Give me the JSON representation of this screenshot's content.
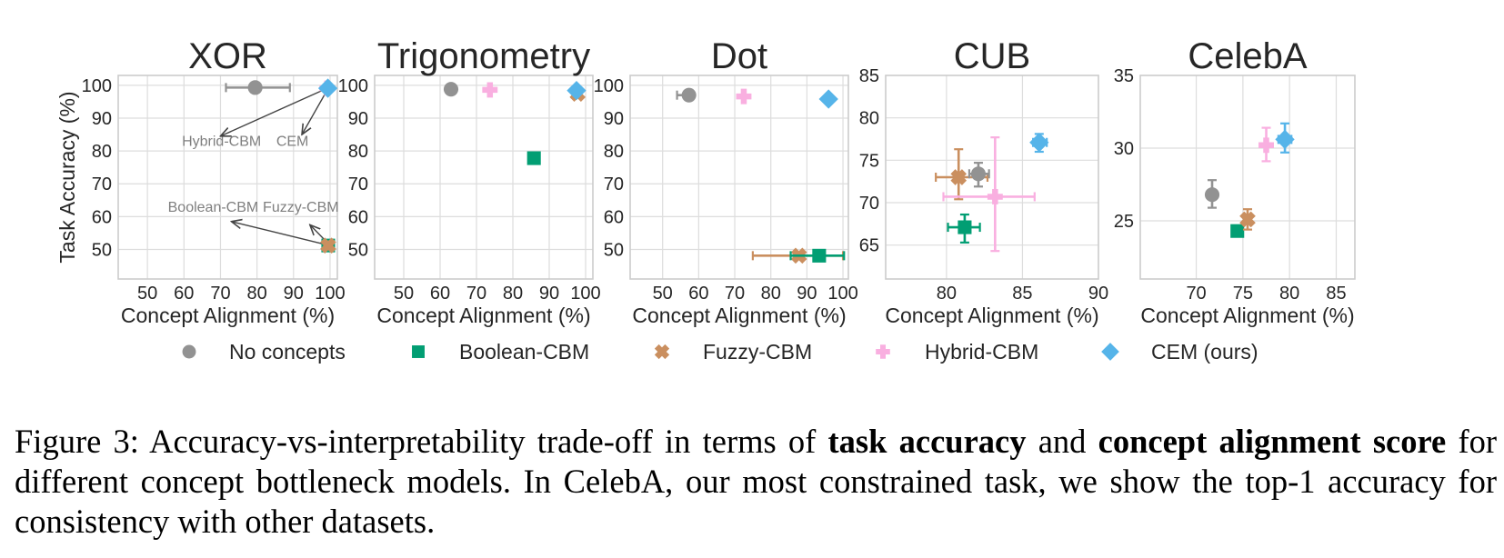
{
  "chart_data": [
    {
      "type": "scatter",
      "title": "XOR",
      "xlabel": "Concept Alignment (%)",
      "ylabel": "Task Accuracy (%)",
      "xlim": [
        42,
        102
      ],
      "ylim": [
        41,
        103
      ],
      "xticks": [
        50,
        60,
        70,
        80,
        90,
        100
      ],
      "yticks": [
        50,
        60,
        70,
        80,
        90,
        100
      ],
      "grid": true,
      "points": [
        {
          "series": "No concepts",
          "x": 79.5,
          "y": 99.3,
          "xerr": [
            71.5,
            89.0
          ],
          "yerr": null
        },
        {
          "series": "Hybrid-CBM",
          "x": 99.2,
          "y": 99.1,
          "xerr": null,
          "yerr": null
        },
        {
          "series": "CEM (ours)",
          "x": 99.4,
          "y": 99.1,
          "xerr": null,
          "yerr": null
        },
        {
          "series": "Boolean-CBM",
          "x": 99.5,
          "y": 51.2,
          "xerr": null,
          "yerr": null
        },
        {
          "series": "Fuzzy-CBM",
          "x": 99.5,
          "y": 51.2,
          "xerr": null,
          "yerr": null
        }
      ],
      "annotations": [
        {
          "text": "Hybrid-CBM",
          "x": 70.3,
          "y": 81.5,
          "arrow_from": [
            99.2,
            99.1
          ],
          "arrow_to": [
            70.0,
            84.5
          ]
        },
        {
          "text": "CEM",
          "x": 89.7,
          "y": 81.5,
          "arrow_from": [
            99.2,
            98.5
          ],
          "arrow_to": [
            92.3,
            85.0
          ]
        },
        {
          "text": "Boolean-CBM",
          "x": 68.0,
          "y": 61.5,
          "arrow_from": [
            99.5,
            51.3
          ],
          "arrow_to": [
            73.0,
            58.5
          ]
        },
        {
          "text": "Fuzzy-CBM",
          "x": 92.0,
          "y": 61.5,
          "arrow_from": [
            99.5,
            51.8
          ],
          "arrow_to": [
            94.5,
            57.5
          ]
        }
      ]
    },
    {
      "type": "scatter",
      "title": "Trigonometry",
      "xlabel": "Concept Alignment (%)",
      "ylabel": "",
      "xlim": [
        42,
        102
      ],
      "ylim": [
        41,
        103
      ],
      "xticks": [
        50,
        60,
        70,
        80,
        90,
        100
      ],
      "yticks": [
        50,
        60,
        70,
        80,
        90,
        100
      ],
      "grid": true,
      "points": [
        {
          "series": "No concepts",
          "x": 63.0,
          "y": 98.8,
          "xerr": null,
          "yerr": null
        },
        {
          "series": "Hybrid-CBM",
          "x": 73.7,
          "y": 98.6,
          "xerr": null,
          "yerr": null
        },
        {
          "series": "Boolean-CBM",
          "x": 85.8,
          "y": 77.8,
          "xerr": null,
          "yerr": null
        },
        {
          "series": "Fuzzy-CBM",
          "x": 97.8,
          "y": 97.4,
          "xerr": null,
          "yerr": null
        },
        {
          "series": "CEM (ours)",
          "x": 97.5,
          "y": 98.4,
          "xerr": null,
          "yerr": null
        }
      ],
      "annotations": []
    },
    {
      "type": "scatter",
      "title": "Dot",
      "xlabel": "Concept Alignment (%)",
      "ylabel": "",
      "xlim": [
        41,
        101.5
      ],
      "ylim": [
        41,
        103
      ],
      "xticks": [
        50,
        60,
        70,
        80,
        90,
        100
      ],
      "yticks": [
        50,
        60,
        70,
        80,
        90,
        100
      ],
      "grid": true,
      "points": [
        {
          "series": "No concepts",
          "x": 57.3,
          "y": 97.0,
          "xerr": [
            54.0,
            58.5
          ],
          "yerr": null
        },
        {
          "series": "Hybrid-CBM",
          "x": 72.5,
          "y": 96.6,
          "xerr": null,
          "yerr": null
        },
        {
          "series": "CEM (ours)",
          "x": 96.0,
          "y": 95.8,
          "xerr": null,
          "yerr": null
        },
        {
          "series": "Fuzzy-CBM",
          "x": 87.8,
          "y": 48.1,
          "xerr": [
            75.0,
            100.0
          ],
          "yerr": null
        },
        {
          "series": "Boolean-CBM",
          "x": 93.4,
          "y": 48.1,
          "xerr": [
            85.5,
            100.3
          ],
          "yerr": null
        }
      ],
      "annotations": []
    },
    {
      "type": "scatter",
      "title": "CUB",
      "xlabel": "Concept Alignment (%)",
      "ylabel": "",
      "xlim": [
        76,
        90
      ],
      "ylim": [
        61,
        85
      ],
      "xticks": [
        80,
        85,
        90
      ],
      "yticks": [
        65,
        70,
        75,
        80,
        85
      ],
      "grid": true,
      "points": [
        {
          "series": "Fuzzy-CBM",
          "x": 80.8,
          "y": 73.0,
          "xerr": [
            79.3,
            82.7
          ],
          "yerr": [
            70.4,
            76.3
          ]
        },
        {
          "series": "No concepts",
          "x": 82.1,
          "y": 73.4,
          "xerr": [
            81.5,
            82.8
          ],
          "yerr": [
            71.9,
            74.7
          ]
        },
        {
          "series": "Hybrid-CBM",
          "x": 83.2,
          "y": 70.7,
          "xerr": [
            79.8,
            85.8
          ],
          "yerr": [
            64.3,
            77.7
          ]
        },
        {
          "series": "Boolean-CBM",
          "x": 81.2,
          "y": 67.1,
          "xerr": [
            80.1,
            82.2
          ],
          "yerr": [
            65.3,
            68.6
          ]
        },
        {
          "series": "CEM (ours)",
          "x": 86.1,
          "y": 77.1,
          "xerr": [
            85.7,
            86.6
          ],
          "yerr": [
            76.0,
            78.1
          ]
        }
      ],
      "annotations": []
    },
    {
      "type": "scatter",
      "title": "CelebA",
      "xlabel": "Concept Alignment (%)",
      "ylabel": "",
      "xlim": [
        64,
        87
      ],
      "ylim": [
        21,
        35
      ],
      "xticks": [
        70,
        75,
        80,
        85
      ],
      "yticks": [
        25,
        30,
        35
      ],
      "grid": true,
      "points": [
        {
          "series": "No concepts",
          "x": 71.7,
          "y": 26.8,
          "xerr": null,
          "yerr": [
            25.9,
            27.8
          ]
        },
        {
          "series": "Boolean-CBM",
          "x": 74.4,
          "y": 24.3,
          "xerr": [
            73.9,
            75.0
          ],
          "yerr": null
        },
        {
          "series": "Fuzzy-CBM",
          "x": 75.5,
          "y": 25.1,
          "xerr": null,
          "yerr": [
            24.4,
            25.8
          ]
        },
        {
          "series": "Hybrid-CBM",
          "x": 77.5,
          "y": 30.2,
          "xerr": null,
          "yerr": [
            29.1,
            31.4
          ]
        },
        {
          "series": "CEM (ours)",
          "x": 79.5,
          "y": 30.6,
          "xerr": [
            78.8,
            80.2
          ],
          "yerr": [
            29.7,
            31.7
          ]
        }
      ],
      "annotations": []
    }
  ],
  "legend": {
    "position": "bottom",
    "items": [
      {
        "label": "No concepts",
        "marker": "circle",
        "color": "#929292"
      },
      {
        "label": "Boolean-CBM",
        "marker": "square",
        "color": "#029e73"
      },
      {
        "label": "Fuzzy-CBM",
        "marker": "x-cross",
        "color": "#ca8f5f"
      },
      {
        "label": "Hybrid-CBM",
        "marker": "plus",
        "color": "#f9afe0"
      },
      {
        "label": "CEM (ours)",
        "marker": "diamond",
        "color": "#56b4e9"
      }
    ]
  },
  "caption": {
    "prefix": "Figure 3: Accuracy-vs-interpretability trade-off in terms of ",
    "bold1": "task accuracy",
    "mid1": " and ",
    "bold2": "concept alignment score",
    "suffix": " for different concept bottleneck models. In CelebA, our most constrained task, we show the top-1 accuracy for consistency with other datasets."
  }
}
